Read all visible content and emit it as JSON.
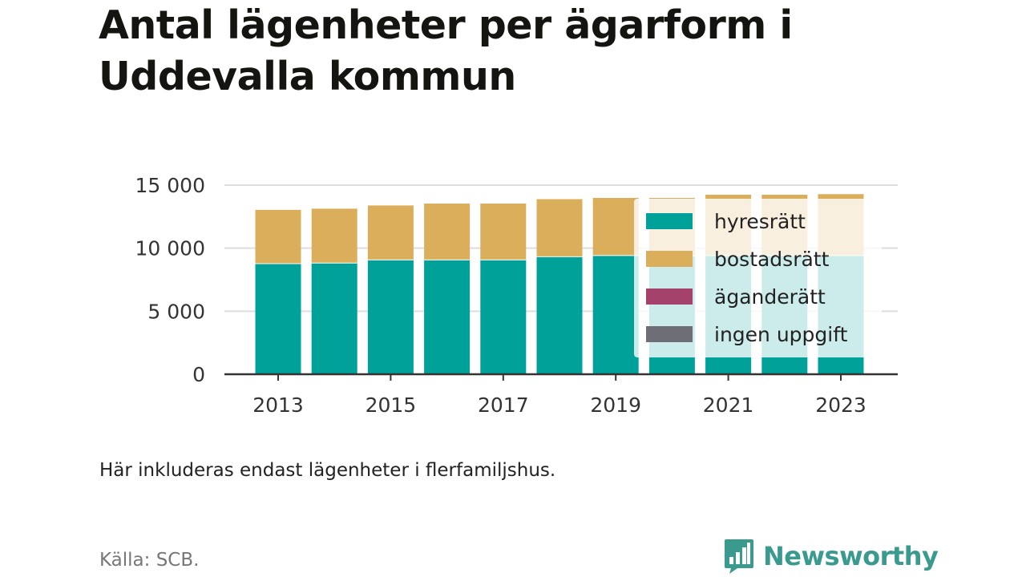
{
  "chart_data": {
    "type": "bar",
    "stacked": true,
    "title": "Antal lägenheter per ägarform i Uddevalla kommun",
    "categories": [
      "2013",
      "2014",
      "2015",
      "2016",
      "2017",
      "2018",
      "2019",
      "2020",
      "2021",
      "2022",
      "2023"
    ],
    "x_tick_labels": [
      "2013",
      "2015",
      "2017",
      "2019",
      "2021",
      "2023"
    ],
    "y_tick_labels": [
      "0",
      "5 000",
      "10 000",
      "15 000"
    ],
    "y_ticks": [
      0,
      5000,
      10000,
      15000
    ],
    "ylim": [
      0,
      15000
    ],
    "grid": true,
    "legend_position": "right",
    "series": [
      {
        "name": "hyresrätt",
        "color": "#00a199",
        "values": [
          8800,
          8850,
          9100,
          9100,
          9100,
          9350,
          9450,
          9400,
          9450,
          9450,
          9450
        ]
      },
      {
        "name": "bostadsrätt",
        "color": "#dbae5c",
        "values": [
          4300,
          4350,
          4350,
          4500,
          4500,
          4600,
          4600,
          4650,
          4850,
          4850,
          4900
        ]
      },
      {
        "name": "äganderätt",
        "color": "#a5426b",
        "values": [
          0,
          0,
          0,
          0,
          0,
          0,
          0,
          0,
          0,
          0,
          0
        ]
      },
      {
        "name": "ingen uppgift",
        "color": "#6e6e76",
        "values": [
          0,
          0,
          0,
          0,
          0,
          0,
          0,
          0,
          0,
          0,
          0
        ]
      }
    ]
  },
  "note": "Här inkluderas endast lägenheter i flerfamiljshus.",
  "source": "Källa: SCB.",
  "brand": {
    "name": "Newsworthy",
    "icon": "bar-chart-logo-icon",
    "color": "#3a9a8e"
  }
}
